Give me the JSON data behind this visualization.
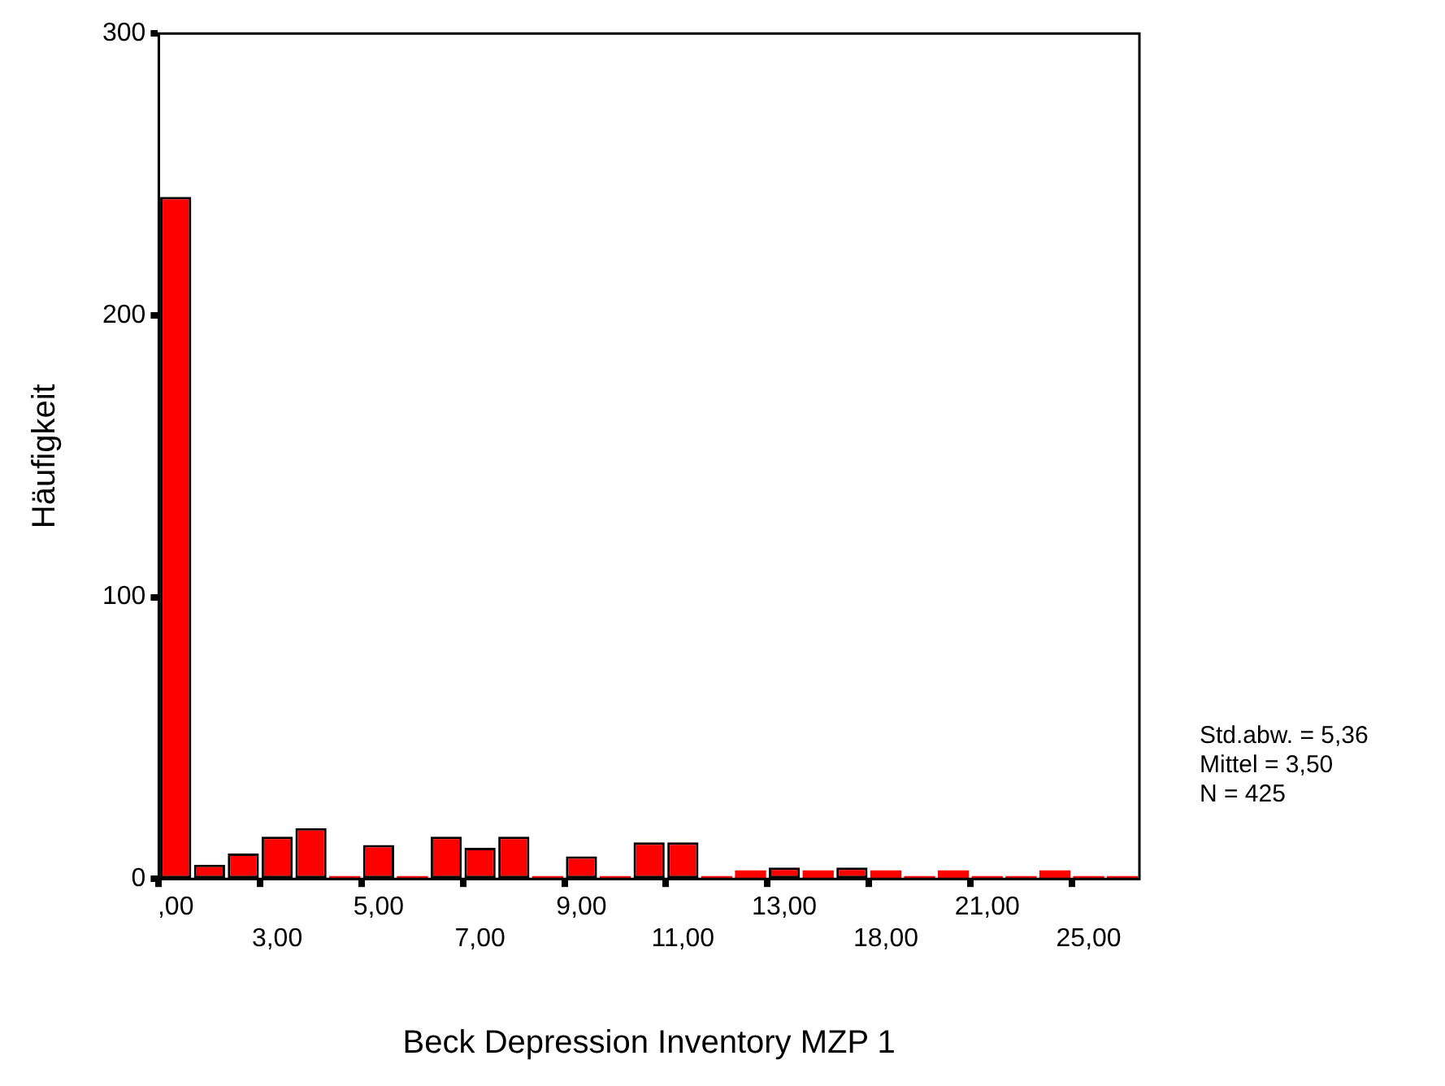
{
  "chart_data": {
    "type": "bar",
    "xlabel": "Beck Depression Inventory MZP 1",
    "ylabel": "Häufigkeit",
    "categories": [
      ",00",
      null,
      null,
      "3,00",
      null,
      null,
      "5,00",
      null,
      null,
      "7,00",
      null,
      null,
      "9,00",
      null,
      null,
      "11,00",
      null,
      null,
      "13,00",
      null,
      null,
      "18,00",
      null,
      null,
      "21,00",
      null,
      null,
      "25,00",
      null
    ],
    "values": [
      242,
      5,
      9,
      15,
      18,
      1,
      12,
      1,
      15,
      11,
      15,
      1,
      8,
      1,
      13,
      13,
      1,
      3,
      4,
      3,
      4,
      3,
      1,
      3,
      1,
      1,
      3,
      1,
      1
    ],
    "color": "#ff0000",
    "ylim": [
      0,
      300
    ],
    "yticks": [
      0,
      100,
      200,
      300
    ],
    "annotations": [
      "Std.abw. = 5,36",
      "Mittel = 3,50",
      "N = 425"
    ]
  }
}
